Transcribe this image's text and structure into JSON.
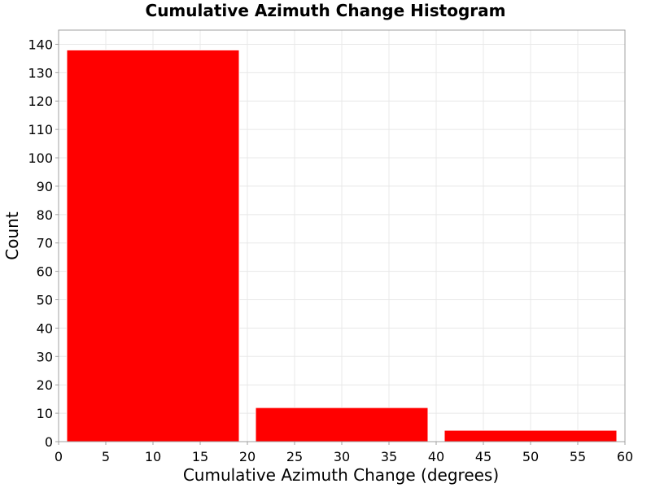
{
  "chart_data": {
    "type": "bar",
    "title": "Cumulative Azimuth Change Histogram",
    "xlabel": "Cumulative Azimuth Change (degrees)",
    "ylabel": "Count",
    "xlim": [
      0,
      60
    ],
    "ylim": [
      0,
      145
    ],
    "x_ticks": [
      0,
      5,
      10,
      15,
      20,
      25,
      30,
      35,
      40,
      45,
      50,
      55,
      60
    ],
    "y_ticks": [
      0,
      10,
      20,
      30,
      40,
      50,
      60,
      70,
      80,
      90,
      100,
      110,
      120,
      130,
      140
    ],
    "bins": [
      {
        "start": 0,
        "end": 20,
        "value": 138
      },
      {
        "start": 20,
        "end": 40,
        "value": 12
      },
      {
        "start": 40,
        "end": 60,
        "value": 4
      }
    ],
    "bar_color": "#ff0000",
    "grid": true,
    "legend": "none"
  },
  "colors": {
    "background": "#ffffff",
    "plot_background": "#ffffff",
    "grid": "#e8e8e8",
    "axis": "#a0a0a0",
    "bar_edge": "#ffffff"
  }
}
